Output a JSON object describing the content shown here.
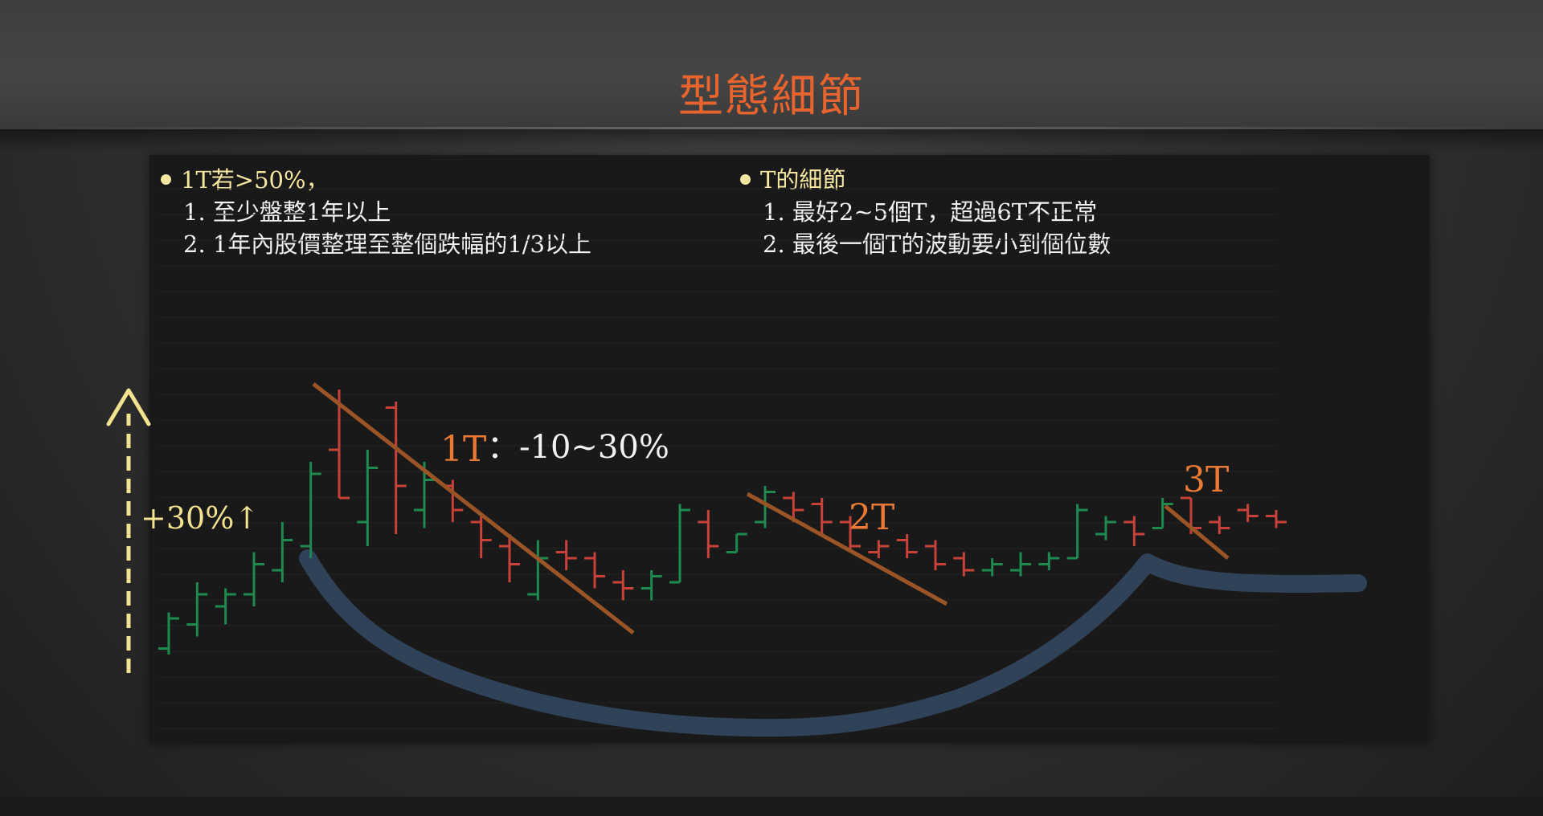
{
  "slide": {
    "title": "型態細節"
  },
  "notes_left": {
    "heading": "1T若>50%，",
    "items": [
      "1. 至少盤整1年以上",
      "2. 1年內股價整理至整個跌幅的1/3以上"
    ]
  },
  "notes_right": {
    "heading": "T的細節",
    "items": [
      "1. 最好2~5個T，超過6T不正常",
      "2. 最後一個T的波動要小到個位數"
    ]
  },
  "annotations": {
    "rise_label": "+30%↑",
    "t1_label": "1T",
    "t1_range": "：-10~30%",
    "t2_label": "2T",
    "t3_label": "3T"
  },
  "colors": {
    "title": "#e8642e",
    "bullet": "#f6e7a0",
    "t_label": "#e87a35",
    "bar_up": "#1f8a4f",
    "bar_down": "#c8423a",
    "trendline": "#9a5425",
    "cup_curve": "#33475e",
    "arrow": "#f3e290"
  },
  "chart_data": {
    "type": "ohlc",
    "bars": [
      {
        "o": 15,
        "h": 21,
        "l": 14,
        "c": 20,
        "dir": "up"
      },
      {
        "o": 19,
        "h": 26,
        "l": 17,
        "c": 24,
        "dir": "up"
      },
      {
        "o": 22,
        "h": 25,
        "l": 19,
        "c": 24,
        "dir": "up"
      },
      {
        "o": 24,
        "h": 31,
        "l": 22,
        "c": 29,
        "dir": "up"
      },
      {
        "o": 28,
        "h": 36,
        "l": 26,
        "c": 33,
        "dir": "up"
      },
      {
        "o": 32,
        "h": 46,
        "l": 30,
        "c": 44,
        "dir": "up"
      },
      {
        "o": 48,
        "h": 58,
        "l": 40,
        "c": 40,
        "dir": "down"
      },
      {
        "o": 36,
        "h": 48,
        "l": 32,
        "c": 45,
        "dir": "up"
      },
      {
        "o": 55,
        "h": 56,
        "l": 34,
        "c": 42,
        "dir": "down"
      },
      {
        "o": 38,
        "h": 46,
        "l": 35,
        "c": 43,
        "dir": "up"
      },
      {
        "o": 42,
        "h": 43,
        "l": 36,
        "c": 38,
        "dir": "down"
      },
      {
        "o": 36,
        "h": 37,
        "l": 30,
        "c": 33,
        "dir": "down"
      },
      {
        "o": 32,
        "h": 34,
        "l": 26,
        "c": 29,
        "dir": "down"
      },
      {
        "o": 24,
        "h": 33,
        "l": 23,
        "c": 30,
        "dir": "up"
      },
      {
        "o": 31,
        "h": 33,
        "l": 28,
        "c": 30,
        "dir": "down"
      },
      {
        "o": 30,
        "h": 31,
        "l": 25,
        "c": 27,
        "dir": "down"
      },
      {
        "o": 26,
        "h": 28,
        "l": 23,
        "c": 25,
        "dir": "down"
      },
      {
        "o": 25,
        "h": 28,
        "l": 23,
        "c": 27,
        "dir": "up"
      },
      {
        "o": 26,
        "h": 39,
        "l": 26,
        "c": 38,
        "dir": "up"
      },
      {
        "o": 36,
        "h": 38,
        "l": 30,
        "c": 32,
        "dir": "down"
      },
      {
        "o": 31,
        "h": 34,
        "l": 31,
        "c": 34,
        "dir": "up"
      },
      {
        "o": 36,
        "h": 42,
        "l": 35,
        "c": 41,
        "dir": "up"
      },
      {
        "o": 40,
        "h": 41,
        "l": 36,
        "c": 38,
        "dir": "down"
      },
      {
        "o": 39,
        "h": 40,
        "l": 34,
        "c": 36,
        "dir": "down"
      },
      {
        "o": 36,
        "h": 37,
        "l": 31,
        "c": 32,
        "dir": "down"
      },
      {
        "o": 31,
        "h": 33,
        "l": 30,
        "c": 32,
        "dir": "down"
      },
      {
        "o": 33,
        "h": 34,
        "l": 30,
        "c": 31,
        "dir": "down"
      },
      {
        "o": 32,
        "h": 33,
        "l": 28,
        "c": 29,
        "dir": "down"
      },
      {
        "o": 30,
        "h": 31,
        "l": 27,
        "c": 28,
        "dir": "down"
      },
      {
        "o": 28,
        "h": 30,
        "l": 27,
        "c": 29,
        "dir": "up"
      },
      {
        "o": 28,
        "h": 31,
        "l": 27,
        "c": 29,
        "dir": "up"
      },
      {
        "o": 29,
        "h": 31,
        "l": 28,
        "c": 30,
        "dir": "up"
      },
      {
        "o": 30,
        "h": 39,
        "l": 30,
        "c": 38,
        "dir": "up"
      },
      {
        "o": 34,
        "h": 37,
        "l": 33,
        "c": 36,
        "dir": "up"
      },
      {
        "o": 36,
        "h": 37,
        "l": 32,
        "c": 34,
        "dir": "down"
      },
      {
        "o": 35,
        "h": 40,
        "l": 35,
        "c": 39,
        "dir": "up"
      },
      {
        "o": 40,
        "h": 40,
        "l": 34,
        "c": 35,
        "dir": "down"
      },
      {
        "o": 36,
        "h": 37,
        "l": 34,
        "c": 35,
        "dir": "down"
      },
      {
        "o": 38,
        "h": 39,
        "l": 36,
        "c": 37,
        "dir": "down"
      },
      {
        "o": 37,
        "h": 38,
        "l": 35,
        "c": 36,
        "dir": "down"
      }
    ],
    "annotations": [
      {
        "text": "+30%↑"
      },
      {
        "text": "1T",
        "detail": "：-10~30%"
      },
      {
        "text": "2T"
      },
      {
        "text": "3T"
      }
    ]
  }
}
